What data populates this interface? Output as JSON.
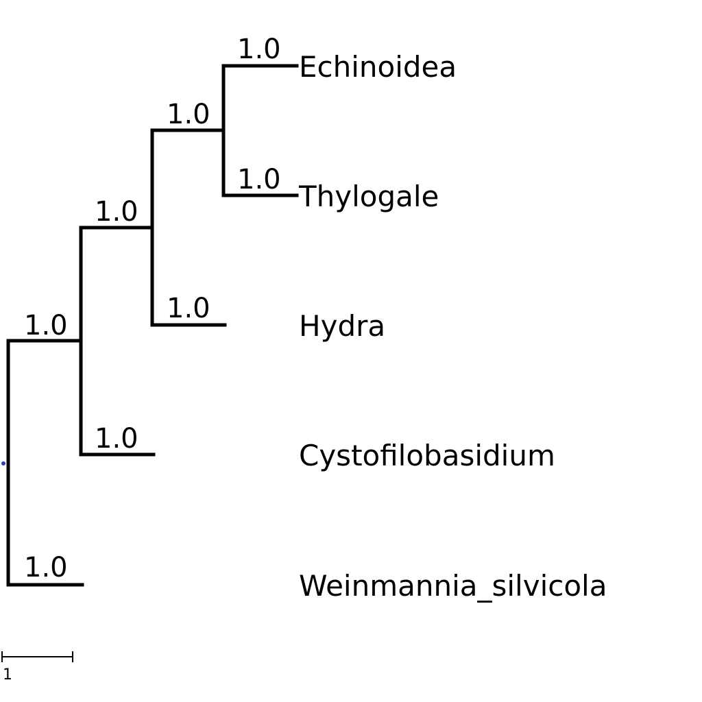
{
  "tree": {
    "type": "phylogenetic-tree",
    "root_marker_color": "#1f3fbf",
    "branch_color": "#000000",
    "leaves": [
      {
        "name": "Echinoidea",
        "support": "1.0"
      },
      {
        "name": "Thylogale",
        "support": "1.0"
      },
      {
        "name": "Hydra",
        "support": "1.0"
      },
      {
        "name": "Cystofilobasidium",
        "support": "1.0"
      },
      {
        "name": "Weinmannia_silvicola",
        "support": "1.0"
      }
    ],
    "internal_nodes": [
      {
        "id": "echinoidea-thylogale",
        "support": "1.0"
      },
      {
        "id": "plus-hydra",
        "support": "1.0"
      },
      {
        "id": "plus-cystofilobasidium",
        "support": "1.0"
      }
    ],
    "scale_bar": {
      "label": "1",
      "length_units": 1
    }
  }
}
